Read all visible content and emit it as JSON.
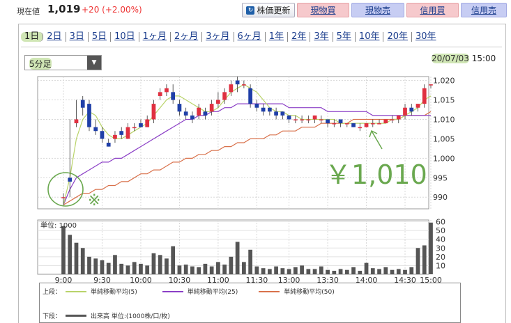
{
  "header": {
    "price_label": "現在値",
    "price_value": "1,019",
    "price_change": "+20 (+2.00%)",
    "update_button": "株価更新",
    "buttons": [
      {
        "label": "現物買",
        "color": "#f6c9cc"
      },
      {
        "label": "現物売",
        "color": "#c7cdf3"
      },
      {
        "label": "信用買",
        "color": "#f6c9cc"
      },
      {
        "label": "信用売",
        "color": "#c7cdf3"
      }
    ]
  },
  "tabs": [
    "1日",
    "2日",
    "3日",
    "5日",
    "10日",
    "1ヶ月",
    "2ヶ月",
    "3ヶ月",
    "6ヶ月",
    "1年",
    "2年",
    "3年",
    "5年",
    "10年",
    "20年",
    "30年"
  ],
  "active_tab": "1日",
  "interval_select": "5分足",
  "date": "20/07/03",
  "time": "15:00",
  "chart_data": {
    "type": "candlestick",
    "price_ticks": [
      "1,020",
      "1,015",
      "1,010",
      "1,005",
      "1,000",
      "995",
      "990"
    ],
    "time_ticks": [
      "9:00",
      "9:30",
      "10:00",
      "10:30",
      "11:00",
      "11:30",
      "13:00",
      "13:30",
      "14:00",
      "14:30",
      "15:00"
    ],
    "ylim": [
      987,
      1021
    ],
    "candles": [
      [
        990,
        991,
        990,
        988
      ],
      [
        995,
        1010,
        994,
        990
      ],
      [
        1009,
        1015,
        1010,
        1008
      ],
      [
        1015,
        1016,
        1013,
        1011
      ],
      [
        1014,
        1015,
        1008,
        1007
      ],
      [
        1008,
        1010,
        1007,
        1006
      ],
      [
        1007,
        1008,
        1005,
        1004
      ],
      [
        1004,
        1005,
        1003,
        1003
      ],
      [
        1005,
        1007,
        1006,
        1004
      ],
      [
        1007,
        1008,
        1006,
        1005
      ],
      [
        1005,
        1009,
        1008,
        1005
      ],
      [
        1008,
        1009,
        1008,
        1007
      ],
      [
        1009,
        1010,
        1008,
        1008
      ],
      [
        1008,
        1011,
        1010,
        1008
      ],
      [
        1010,
        1015,
        1014,
        1009
      ],
      [
        1016,
        1018,
        1017,
        1015
      ],
      [
        1017,
        1019,
        1018,
        1016
      ],
      [
        1017,
        1019,
        1015,
        1014
      ],
      [
        1014,
        1015,
        1012,
        1011
      ],
      [
        1012,
        1013,
        1011,
        1010
      ],
      [
        1011,
        1012,
        1010,
        1009
      ],
      [
        1011,
        1014,
        1013,
        1010
      ],
      [
        1012,
        1013,
        1011,
        1010
      ],
      [
        1012,
        1015,
        1014,
        1011
      ],
      [
        1014,
        1017,
        1015,
        1013
      ],
      [
        1015,
        1018,
        1017,
        1014
      ],
      [
        1017,
        1020,
        1019,
        1016
      ],
      [
        1020,
        1021,
        1019,
        1017
      ],
      [
        1019,
        1020,
        1019,
        1018
      ],
      [
        1018,
        1019,
        1014,
        1013
      ],
      [
        1014,
        1015,
        1013,
        1012
      ],
      [
        1013,
        1014,
        1012,
        1011
      ],
      [
        1013,
        1013,
        1012,
        1011
      ],
      [
        1012,
        1013,
        1011,
        1010
      ],
      [
        1012,
        1012,
        1011,
        1010
      ],
      [
        1011,
        1011,
        1010,
        1009
      ],
      [
        1010,
        1011,
        1010,
        1009
      ],
      [
        1010,
        1011,
        1010,
        1009
      ],
      [
        1010,
        1011,
        1010,
        1009
      ],
      [
        1010,
        1011,
        1011,
        1009
      ],
      [
        1010,
        1011,
        1010,
        1009
      ],
      [
        1010,
        1010,
        1009,
        1008
      ],
      [
        1009,
        1010,
        1009,
        1008
      ],
      [
        1010,
        1010,
        1009,
        1008
      ],
      [
        1009,
        1009,
        1009,
        1008
      ],
      [
        1009,
        1009,
        1008,
        1008
      ],
      [
        1008,
        1009,
        1008,
        1007
      ],
      [
        1008,
        1009,
        1009,
        1008
      ],
      [
        1009,
        1010,
        1009,
        1008
      ],
      [
        1009,
        1010,
        1009,
        1009
      ],
      [
        1009,
        1010,
        1010,
        1009
      ],
      [
        1010,
        1011,
        1010,
        1009
      ],
      [
        1010,
        1011,
        1011,
        1009
      ],
      [
        1011,
        1014,
        1013,
        1010
      ],
      [
        1013,
        1014,
        1012,
        1011
      ],
      [
        1013,
        1014,
        1014,
        1012
      ],
      [
        1014,
        1019,
        1018,
        1013
      ],
      [
        1019,
        1019,
        1019,
        1018
      ]
    ],
    "ma5": [
      988,
      995,
      1005,
      1010,
      1012,
      1011,
      1008,
      1006,
      1005,
      1005,
      1006,
      1007,
      1008,
      1009,
      1011,
      1013,
      1015,
      1016,
      1016,
      1015,
      1014,
      1013,
      1012,
      1012,
      1013,
      1015,
      1017,
      1018,
      1019,
      1018,
      1017,
      1015,
      1013,
      1012,
      1012,
      1011,
      1011,
      1010,
      1010,
      1010,
      1010,
      1010,
      1010,
      1009,
      1009,
      1009,
      1009,
      1009,
      1009,
      1009,
      1009,
      1010,
      1010,
      1011,
      1012,
      1013,
      1015,
      1016
    ],
    "ma25": [
      988,
      992,
      995,
      996,
      997,
      998,
      999,
      999,
      1000,
      1000,
      1001,
      1002,
      1003,
      1004,
      1005,
      1006,
      1007,
      1008,
      1009,
      1010,
      1010,
      1011,
      1011,
      1012,
      1012,
      1013,
      1013,
      1014,
      1014,
      1014,
      1014,
      1014,
      1014,
      1014,
      1014,
      1013,
      1013,
      1013,
      1013,
      1013,
      1013,
      1012,
      1012,
      1012,
      1012,
      1012,
      1012,
      1012,
      1011,
      1011,
      1011,
      1011,
      1011,
      1011,
      1011,
      1011,
      1011,
      1011
    ],
    "ma50": [
      988,
      989,
      990,
      991,
      991,
      992,
      992,
      993,
      993,
      994,
      994,
      995,
      996,
      996,
      997,
      997,
      998,
      999,
      999,
      1000,
      1000,
      1001,
      1001,
      1002,
      1002,
      1003,
      1003,
      1004,
      1004,
      1005,
      1005,
      1005,
      1006,
      1006,
      1007,
      1007,
      1007,
      1008,
      1008,
      1008,
      1009,
      1009,
      1009,
      1009,
      1009,
      1010,
      1010,
      1010,
      1010,
      1010,
      1010,
      1010,
      1010,
      1011,
      1011,
      1011,
      1011,
      1012
    ],
    "volume_label": "単位: 1000",
    "volume_ticks": [
      "60",
      "50",
      "40",
      "30",
      "20",
      "10"
    ],
    "volume_ylim": [
      0,
      62
    ],
    "volume": [
      55,
      45,
      36,
      30,
      20,
      18,
      16,
      13,
      22,
      12,
      10,
      14,
      12,
      10,
      24,
      22,
      18,
      32,
      10,
      11,
      9,
      8,
      12,
      9,
      14,
      11,
      20,
      37,
      14,
      28,
      9,
      7,
      6,
      9,
      7,
      6,
      8,
      10,
      6,
      6,
      9,
      5,
      4,
      6,
      5,
      8,
      4,
      13,
      7,
      6,
      8,
      5,
      6,
      5,
      8,
      30,
      33,
      59
    ]
  },
  "legend": {
    "upper_label": "上段：",
    "items": [
      {
        "name": "単純移動平均(5)",
        "color": "#b9d36a"
      },
      {
        "name": "単純移動平均(25)",
        "color": "#8b3fc6"
      },
      {
        "name": "単純移動平均(50)",
        "color": "#d9714b"
      }
    ],
    "lower_label": "下段：",
    "lower_item": "出来高 単位:(1000株/口/枚)",
    "lower_color": "#555555"
  },
  "annotations": {
    "price_note": "￥1,010",
    "mark": "※"
  },
  "colors": {
    "up": "#e03040",
    "down": "#1f3fa8",
    "highlight": "#6aa84f"
  }
}
